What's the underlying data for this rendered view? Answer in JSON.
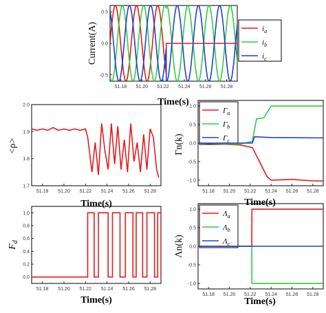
{
  "chart_data": [
    {
      "id": "current",
      "type": "line",
      "xlabel": "Time(s)",
      "ylabel": "Current(A)",
      "xlim": [
        51.17,
        51.29
      ],
      "ylim": [
        -0.6,
        0.6
      ],
      "xticks": [
        "51.18",
        "51.20",
        "51.22",
        "51.24",
        "51.26",
        "51.28"
      ],
      "yticks": [
        "0.5",
        "0.0",
        "-0.5"
      ],
      "legend": "right",
      "series": [
        {
          "name": "i_a",
          "label_base": "i",
          "label_sub": "a",
          "color": "#e31a1c",
          "kind": "sine",
          "amp": 0.6,
          "freq": 50,
          "phase_deg": 0,
          "after": {
            "t": 51.223,
            "value": 0.0
          }
        },
        {
          "name": "i_b",
          "label_base": "i",
          "label_sub": "b",
          "color": "#2ecc40",
          "kind": "sine",
          "amp": 0.6,
          "freq": 50,
          "phase_deg": -120,
          "after": {
            "t": 51.223,
            "amp": 0.6,
            "phase_deg": -150
          }
        },
        {
          "name": "i_c",
          "label_base": "i",
          "label_sub": "c",
          "color": "#1f3fd0",
          "kind": "sine",
          "amp": 0.6,
          "freq": 50,
          "phase_deg": 120,
          "after": {
            "t": 51.223,
            "amp": 0.6,
            "phase_deg": 30
          }
        }
      ]
    },
    {
      "id": "rho",
      "type": "line",
      "xlabel": "Time(s)",
      "ylabel": "<ρ>",
      "xlim": [
        51.17,
        51.29
      ],
      "ylim": [
        1.7,
        2.0
      ],
      "xticks": [
        "51.18",
        "51.20",
        "51.22",
        "51.24",
        "51.26",
        "51.28"
      ],
      "yticks": [
        "2.0",
        "1.9",
        "1.8",
        "1.7"
      ],
      "series": [
        {
          "name": "<ρ>",
          "color": "#e31a1c",
          "kind": "points",
          "x": [
            51.17,
            51.175,
            51.18,
            51.185,
            51.19,
            51.195,
            51.2,
            51.205,
            51.21,
            51.215,
            51.22,
            51.222,
            51.226,
            51.229,
            51.232,
            51.235,
            51.238,
            51.241,
            51.244,
            51.247,
            51.25,
            51.253,
            51.256,
            51.259,
            51.262,
            51.265,
            51.268,
            51.271,
            51.274,
            51.277,
            51.28,
            51.283,
            51.286,
            51.288
          ],
          "y": [
            1.91,
            1.905,
            1.91,
            1.905,
            1.915,
            1.905,
            1.91,
            1.905,
            1.91,
            1.905,
            1.91,
            1.88,
            1.75,
            1.86,
            1.74,
            1.93,
            1.83,
            1.76,
            1.93,
            1.78,
            1.92,
            1.76,
            1.87,
            1.75,
            1.93,
            1.79,
            1.86,
            1.75,
            1.89,
            1.76,
            1.91,
            1.88,
            1.76,
            1.73
          ]
        }
      ]
    },
    {
      "id": "gamma",
      "type": "line",
      "xlabel": "Time(s)",
      "ylabel": "Γn(k)",
      "xlim": [
        51.17,
        51.29
      ],
      "ylim": [
        -1.15,
        1.15
      ],
      "xticks": [
        "51.18",
        "51.20",
        "51.22",
        "51.24",
        "51.26",
        "51.28"
      ],
      "yticks": [
        "1.0",
        "0.5",
        "0.0",
        "-0.5",
        "-1.0"
      ],
      "legend": "top-left",
      "series": [
        {
          "name": "Γ_a",
          "label_base": "Γ",
          "label_sub": "a",
          "color": "#e31a1c",
          "kind": "points",
          "x": [
            51.17,
            51.21,
            51.222,
            51.228,
            51.236,
            51.24,
            51.26,
            51.28,
            51.29
          ],
          "y": [
            0.0,
            -0.05,
            -0.12,
            -0.45,
            -0.9,
            -1.0,
            -0.98,
            -1.02,
            -1.02
          ]
        },
        {
          "name": "Γ_b",
          "label_base": "Γ",
          "label_sub": "b",
          "color": "#2ecc40",
          "kind": "points",
          "x": [
            51.17,
            51.21,
            51.222,
            51.226,
            51.233,
            51.24,
            51.29
          ],
          "y": [
            0.0,
            -0.03,
            0.05,
            0.65,
            0.68,
            1.0,
            1.0
          ]
        },
        {
          "name": "Γ_c",
          "label_base": "Γ",
          "label_sub": "c",
          "color": "#1f3fd0",
          "kind": "points",
          "x": [
            51.17,
            51.222,
            51.224,
            51.24,
            51.29
          ],
          "y": [
            0.0,
            0.0,
            0.17,
            0.15,
            0.14
          ]
        }
      ]
    },
    {
      "id": "fd",
      "type": "line",
      "xlabel": "Time(s)",
      "ylabel": "Fd",
      "ylabel_base": "F",
      "ylabel_sub": "d",
      "xlim": [
        51.17,
        51.29
      ],
      "ylim": [
        -0.1,
        1.1
      ],
      "xticks": [
        "51.18",
        "51.20",
        "51.22",
        "51.24",
        "51.26",
        "51.28"
      ],
      "yticks": [
        "1.0",
        "0.8",
        "0.6",
        "0.4",
        "0.2",
        "0.0"
      ],
      "series": [
        {
          "name": "Fd",
          "color": "#e31a1c",
          "kind": "pulses",
          "base": 0,
          "level": 1,
          "pulses": [
            [
              51.222,
              51.228
            ],
            [
              51.232,
              51.241
            ],
            [
              51.245,
              51.252
            ],
            [
              51.257,
              51.264
            ],
            [
              51.267,
              51.273
            ],
            [
              51.277,
              51.284
            ],
            [
              51.287,
              51.29
            ]
          ]
        }
      ]
    },
    {
      "id": "lambda",
      "type": "line",
      "xlabel": "Time(s)",
      "ylabel": "Λn(k)",
      "xlim": [
        51.17,
        51.29
      ],
      "ylim": [
        -1.15,
        1.15
      ],
      "xticks": [
        "51.18",
        "51.20",
        "51.22",
        "51.24",
        "51.26",
        "51.28"
      ],
      "yticks": [
        "1.0",
        "0.5",
        "0.0",
        "-0.5",
        "-1.0"
      ],
      "legend": "top-left",
      "series": [
        {
          "name": "Λ_a",
          "label_base": "Λ",
          "label_sub": "a",
          "color": "#e31a1c",
          "kind": "points",
          "x": [
            51.17,
            51.2215,
            51.2216,
            51.29
          ],
          "y": [
            0.0,
            0.0,
            1.0,
            1.0
          ]
        },
        {
          "name": "Λ_b",
          "label_base": "Λ",
          "label_sub": "b",
          "color": "#2ecc40",
          "kind": "points",
          "x": [
            51.17,
            51.2215,
            51.2216,
            51.29
          ],
          "y": [
            0.0,
            0.0,
            -1.0,
            -1.0
          ]
        },
        {
          "name": "Λ_c",
          "label_base": "Λ",
          "label_sub": "c",
          "color": "#1f3fd0",
          "kind": "points",
          "x": [
            51.17,
            51.29
          ],
          "y": [
            0.0,
            0.0
          ]
        }
      ]
    }
  ]
}
